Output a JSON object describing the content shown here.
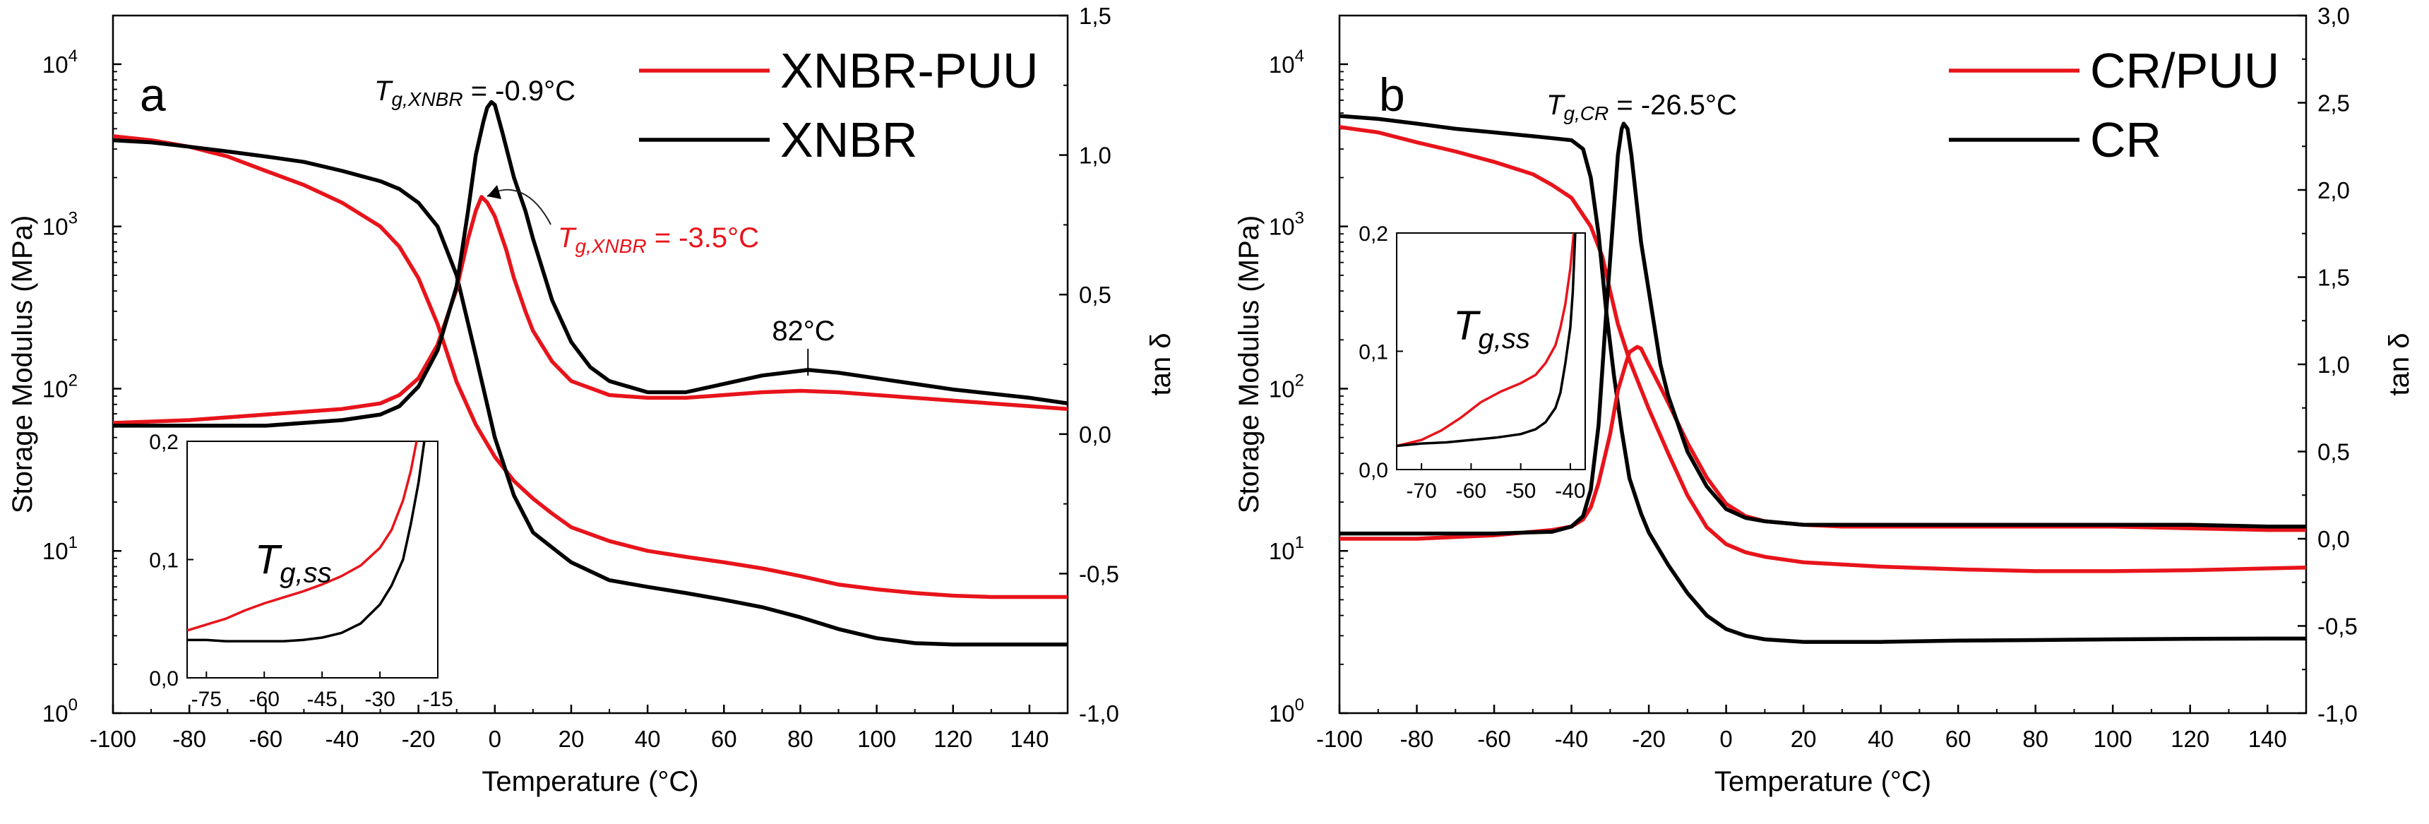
{
  "chart_data": [
    {
      "type": "line",
      "panel_label": "a",
      "xlabel": "Temperature (°C)",
      "ylabel": "Storage Modulus (MPa)",
      "y2label": "tan δ",
      "xlim": [
        -100,
        150
      ],
      "ylim_log10": [
        0,
        4.3
      ],
      "y2lim": [
        -1.0,
        1.5
      ],
      "x_ticks": [
        "-100",
        "-80",
        "-60",
        "-40",
        "-20",
        "0",
        "20",
        "40",
        "60",
        "80",
        "100",
        "120",
        "140"
      ],
      "x_tick_values": [
        -100,
        -80,
        -60,
        -40,
        -20,
        0,
        20,
        40,
        60,
        80,
        100,
        120,
        140
      ],
      "y_ticks": [
        {
          "base": "10",
          "exp": "0",
          "value": 1
        },
        {
          "base": "10",
          "exp": "1",
          "value": 10
        },
        {
          "base": "10",
          "exp": "2",
          "value": 100
        },
        {
          "base": "10",
          "exp": "3",
          "value": 1000
        },
        {
          "base": "10",
          "exp": "4",
          "value": 10000
        }
      ],
      "y2_ticks": [
        "-1,0",
        "-0,5",
        "0,0",
        "0,5",
        "1,0",
        "1,5"
      ],
      "y2_tick_values": [
        -1.0,
        -0.5,
        0.0,
        0.5,
        1.0,
        1.5
      ],
      "legend": [
        {
          "name": "XNBR-PUU",
          "color": "#e8141b"
        },
        {
          "name": "XNBR",
          "color": "#000000"
        }
      ],
      "annotations": {
        "tg_black": {
          "prefix": "T",
          "sub": "g,XNBR",
          "suffix": " = -0.9°C"
        },
        "tg_red": {
          "prefix": "T",
          "sub": "g,XNBR",
          "suffix": " = -3.5°C"
        },
        "peak": "82°C"
      },
      "series": [
        {
          "name": "XNBR-PUU storage modulus",
          "color": "#e8141b",
          "axis": "left",
          "x": [
            -100,
            -90,
            -80,
            -70,
            -60,
            -50,
            -40,
            -30,
            -25,
            -20,
            -15,
            -10,
            -5,
            0,
            5,
            10,
            15,
            20,
            30,
            40,
            50,
            60,
            70,
            80,
            90,
            100,
            110,
            120,
            130,
            140,
            150
          ],
          "y": [
            3600,
            3400,
            3100,
            2700,
            2200,
            1800,
            1400,
            1000,
            750,
            480,
            250,
            110,
            60,
            38,
            27,
            21,
            17,
            14,
            11.5,
            10,
            9.2,
            8.5,
            7.8,
            7,
            6.2,
            5.8,
            5.5,
            5.3,
            5.2,
            5.2,
            5.2
          ]
        },
        {
          "name": "XNBR storage modulus",
          "color": "#000000",
          "axis": "left",
          "x": [
            -100,
            -90,
            -80,
            -70,
            -60,
            -50,
            -40,
            -30,
            -25,
            -20,
            -15,
            -10,
            -5,
            0,
            5,
            10,
            15,
            20,
            30,
            40,
            50,
            60,
            70,
            80,
            90,
            100,
            110,
            120,
            130,
            140,
            150
          ],
          "y": [
            3400,
            3300,
            3100,
            2900,
            2700,
            2500,
            2200,
            1900,
            1700,
            1400,
            1000,
            500,
            160,
            50,
            22,
            13,
            10.5,
            8.5,
            6.6,
            6.0,
            5.5,
            5.0,
            4.5,
            3.9,
            3.3,
            2.9,
            2.7,
            2.65,
            2.65,
            2.65,
            2.65
          ]
        },
        {
          "name": "XNBR-PUU tan δ",
          "color": "#e8141b",
          "axis": "right",
          "x": [
            -100,
            -80,
            -60,
            -40,
            -30,
            -25,
            -20,
            -15,
            -10,
            -7,
            -5,
            -3.5,
            -2,
            0,
            3,
            5,
            8,
            10,
            15,
            20,
            30,
            40,
            50,
            60,
            70,
            80,
            90,
            100,
            120,
            140,
            150
          ],
          "y": [
            0.04,
            0.05,
            0.07,
            0.09,
            0.11,
            0.14,
            0.2,
            0.32,
            0.52,
            0.7,
            0.8,
            0.85,
            0.83,
            0.78,
            0.66,
            0.56,
            0.44,
            0.37,
            0.26,
            0.19,
            0.14,
            0.13,
            0.13,
            0.14,
            0.15,
            0.155,
            0.15,
            0.14,
            0.12,
            0.1,
            0.09
          ]
        },
        {
          "name": "XNBR tan δ",
          "color": "#000000",
          "axis": "right",
          "x": [
            -100,
            -80,
            -60,
            -40,
            -30,
            -25,
            -20,
            -15,
            -10,
            -7,
            -5,
            -3,
            -2,
            -0.9,
            0,
            2,
            5,
            8,
            10,
            15,
            20,
            25,
            30,
            40,
            50,
            60,
            70,
            82,
            90,
            100,
            120,
            140,
            150
          ],
          "y": [
            0.03,
            0.03,
            0.03,
            0.05,
            0.07,
            0.1,
            0.17,
            0.3,
            0.53,
            0.8,
            1.0,
            1.12,
            1.17,
            1.19,
            1.18,
            1.08,
            0.92,
            0.8,
            0.7,
            0.48,
            0.33,
            0.24,
            0.19,
            0.15,
            0.15,
            0.18,
            0.21,
            0.23,
            0.22,
            0.2,
            0.16,
            0.13,
            0.11
          ]
        }
      ],
      "inset": {
        "label_prefix": "T",
        "label_sub": "g,ss",
        "xlim": [
          -80,
          -15
        ],
        "ylim": [
          0,
          0.2
        ],
        "x_ticks": [
          "-75",
          "-60",
          "-45",
          "-30",
          "-15"
        ],
        "x_tick_values": [
          -75,
          -60,
          -45,
          -30,
          -15
        ],
        "y_ticks": [
          "0,0",
          "0,1",
          "0,2"
        ],
        "y_tick_values": [
          0.0,
          0.1,
          0.2
        ],
        "series": [
          {
            "name": "XNBR-PUU",
            "color": "#e8141b",
            "x": [
              -80,
              -75,
              -70,
              -65,
              -60,
              -55,
              -50,
              -45,
              -40,
              -35,
              -30,
              -27,
              -24,
              -22,
              -20.5
            ],
            "y": [
              0.04,
              0.045,
              0.05,
              0.057,
              0.063,
              0.068,
              0.073,
              0.079,
              0.086,
              0.095,
              0.11,
              0.125,
              0.15,
              0.175,
              0.2
            ]
          },
          {
            "name": "XNBR",
            "color": "#000000",
            "x": [
              -80,
              -75,
              -70,
              -65,
              -60,
              -55,
              -50,
              -45,
              -40,
              -35,
              -30,
              -27,
              -24,
              -22,
              -20,
              -18.5
            ],
            "y": [
              0.032,
              0.032,
              0.031,
              0.031,
              0.031,
              0.031,
              0.032,
              0.034,
              0.038,
              0.046,
              0.062,
              0.078,
              0.1,
              0.13,
              0.165,
              0.2
            ]
          }
        ]
      }
    },
    {
      "type": "line",
      "panel_label": "b",
      "xlabel": "Temperature (°C)",
      "ylabel": "Storage Modulus (MPa)",
      "y2label": "tan δ",
      "xlim": [
        -100,
        150
      ],
      "ylim_log10": [
        0,
        4.3
      ],
      "y2lim": [
        -1.0,
        3.0
      ],
      "x_ticks": [
        "-100",
        "-80",
        "-60",
        "-40",
        "-20",
        "0",
        "20",
        "40",
        "60",
        "80",
        "100",
        "120",
        "140"
      ],
      "x_tick_values": [
        -100,
        -80,
        -60,
        -40,
        -20,
        0,
        20,
        40,
        60,
        80,
        100,
        120,
        140
      ],
      "y_ticks": [
        {
          "base": "10",
          "exp": "0",
          "value": 1
        },
        {
          "base": "10",
          "exp": "1",
          "value": 10
        },
        {
          "base": "10",
          "exp": "2",
          "value": 100
        },
        {
          "base": "10",
          "exp": "3",
          "value": 1000
        },
        {
          "base": "10",
          "exp": "4",
          "value": 10000
        }
      ],
      "y2_ticks": [
        "-1,0",
        "-0,5",
        "0,0",
        "0,5",
        "1,0",
        "1,5",
        "2,0",
        "2,5",
        "3,0"
      ],
      "y2_tick_values": [
        -1.0,
        -0.5,
        0.0,
        0.5,
        1.0,
        1.5,
        2.0,
        2.5,
        3.0
      ],
      "legend": [
        {
          "name": "CR/PUU",
          "color": "#e8141b"
        },
        {
          "name": "CR",
          "color": "#000000"
        }
      ],
      "annotations": {
        "tg_black": {
          "prefix": "T",
          "sub": "g,CR",
          "suffix": " = -26.5°C"
        }
      },
      "series": [
        {
          "name": "CR/PUU storage modulus",
          "color": "#e8141b",
          "axis": "left",
          "x": [
            -100,
            -90,
            -80,
            -70,
            -60,
            -50,
            -45,
            -40,
            -35,
            -32,
            -30,
            -28,
            -25,
            -20,
            -15,
            -10,
            -5,
            0,
            5,
            10,
            20,
            40,
            60,
            80,
            100,
            120,
            140,
            150
          ],
          "y": [
            4100,
            3800,
            3300,
            2900,
            2500,
            2100,
            1800,
            1500,
            1000,
            650,
            400,
            250,
            150,
            75,
            40,
            22,
            14,
            11,
            9.8,
            9.2,
            8.5,
            8.0,
            7.7,
            7.5,
            7.5,
            7.6,
            7.8,
            7.9
          ]
        },
        {
          "name": "CR storage modulus",
          "color": "#000000",
          "axis": "left",
          "x": [
            -100,
            -90,
            -80,
            -70,
            -60,
            -50,
            -45,
            -40,
            -37,
            -35,
            -33,
            -31,
            -29,
            -27,
            -25,
            -22,
            -20,
            -15,
            -10,
            -5,
            0,
            5,
            10,
            20,
            40,
            60,
            80,
            100,
            120,
            140,
            150
          ],
          "y": [
            4800,
            4600,
            4300,
            4000,
            3800,
            3600,
            3500,
            3400,
            3000,
            2000,
            900,
            300,
            120,
            55,
            28,
            17,
            13,
            8.2,
            5.5,
            4.0,
            3.3,
            3.0,
            2.85,
            2.75,
            2.75,
            2.8,
            2.82,
            2.85,
            2.87,
            2.88,
            2.88
          ]
        },
        {
          "name": "CR/PUU tan δ",
          "color": "#e8141b",
          "axis": "right",
          "x": [
            -100,
            -80,
            -60,
            -45,
            -40,
            -37,
            -35,
            -33,
            -30,
            -28,
            -26,
            -25,
            -23,
            -22,
            -20,
            -17,
            -15,
            -10,
            -5,
            0,
            5,
            10,
            20,
            30,
            40,
            60,
            80,
            100,
            120,
            140,
            150
          ],
          "y": [
            0.0,
            0.0,
            0.02,
            0.05,
            0.07,
            0.11,
            0.18,
            0.32,
            0.6,
            0.85,
            1.0,
            1.07,
            1.1,
            1.09,
            1.0,
            0.87,
            0.78,
            0.55,
            0.35,
            0.2,
            0.13,
            0.1,
            0.08,
            0.07,
            0.07,
            0.07,
            0.07,
            0.07,
            0.06,
            0.05,
            0.05
          ]
        },
        {
          "name": "CR tan δ",
          "color": "#000000",
          "axis": "right",
          "x": [
            -100,
            -80,
            -60,
            -45,
            -40,
            -37,
            -35,
            -33,
            -31,
            -29,
            -28,
            -27,
            -26.5,
            -25.5,
            -24.5,
            -23.5,
            -22,
            -20,
            -17,
            -15,
            -10,
            -5,
            0,
            5,
            10,
            20,
            40,
            60,
            80,
            100,
            120,
            140,
            150
          ],
          "y": [
            0.03,
            0.03,
            0.03,
            0.04,
            0.07,
            0.13,
            0.28,
            0.65,
            1.3,
            1.9,
            2.2,
            2.35,
            2.38,
            2.35,
            2.2,
            2.0,
            1.7,
            1.42,
            1.0,
            0.82,
            0.5,
            0.3,
            0.17,
            0.12,
            0.1,
            0.08,
            0.08,
            0.08,
            0.08,
            0.08,
            0.08,
            0.07,
            0.07
          ]
        }
      ],
      "inset": {
        "label_prefix": "T",
        "label_sub": "g,ss",
        "xlim": [
          -75,
          -37
        ],
        "ylim": [
          0,
          0.2
        ],
        "x_ticks": [
          "-70",
          "-60",
          "-50",
          "-40"
        ],
        "x_tick_values": [
          -70,
          -60,
          -50,
          -40
        ],
        "y_ticks": [
          "0,0",
          "0,1",
          "0,2"
        ],
        "y_tick_values": [
          0.0,
          0.1,
          0.2
        ],
        "series": [
          {
            "name": "CR/PUU",
            "color": "#e8141b",
            "x": [
              -75,
              -70,
              -66,
              -62,
              -58,
              -54,
              -50,
              -47,
              -45,
              -43,
              -42,
              -41,
              -40,
              -39.3
            ],
            "y": [
              0.02,
              0.025,
              0.033,
              0.044,
              0.057,
              0.066,
              0.073,
              0.08,
              0.09,
              0.105,
              0.12,
              0.14,
              0.17,
              0.2
            ]
          },
          {
            "name": "CR",
            "color": "#000000",
            "x": [
              -75,
              -70,
              -65,
              -60,
              -55,
              -50,
              -47,
              -45,
              -43,
              -42,
              -41,
              -40,
              -39.5,
              -39
            ],
            "y": [
              0.02,
              0.022,
              0.023,
              0.025,
              0.027,
              0.03,
              0.034,
              0.04,
              0.052,
              0.065,
              0.09,
              0.12,
              0.15,
              0.2
            ]
          }
        ]
      }
    }
  ]
}
